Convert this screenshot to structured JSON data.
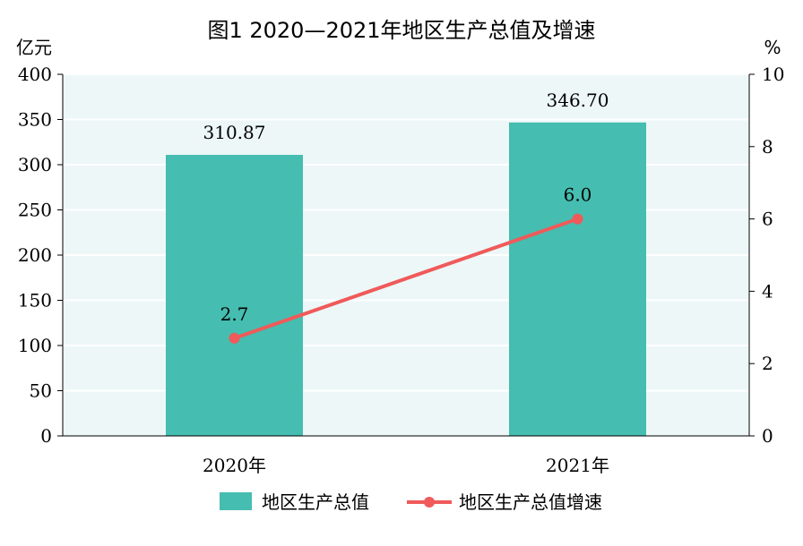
{
  "chart_data": {
    "type": "bar",
    "title": "图1  2020—2021年地区生产总值及增速",
    "categories": [
      "2020年",
      "2021年"
    ],
    "left_axis": {
      "unit": "亿元",
      "ylim": [
        0,
        400
      ],
      "ticks": [
        "0",
        "50",
        "100",
        "150",
        "200",
        "250",
        "300",
        "350",
        "400"
      ]
    },
    "right_axis": {
      "unit": "%",
      "ylim": [
        0,
        10
      ],
      "ticks": [
        "0",
        "2",
        "4",
        "6",
        "8",
        "10"
      ]
    },
    "series": [
      {
        "name": "地区生产总值",
        "type": "bar",
        "axis": "left",
        "values": [
          310.87,
          346.7
        ],
        "labels": [
          "310.87",
          "346.70"
        ],
        "color": "#45bdb0"
      },
      {
        "name": "地区生产总值增速",
        "type": "line",
        "axis": "right",
        "values": [
          2.7,
          6.0
        ],
        "labels": [
          "2.7",
          "6.0"
        ],
        "color": "#f05a5a"
      }
    ],
    "plot_background": "#edf7f8",
    "grid": true,
    "legend": "bottom"
  }
}
